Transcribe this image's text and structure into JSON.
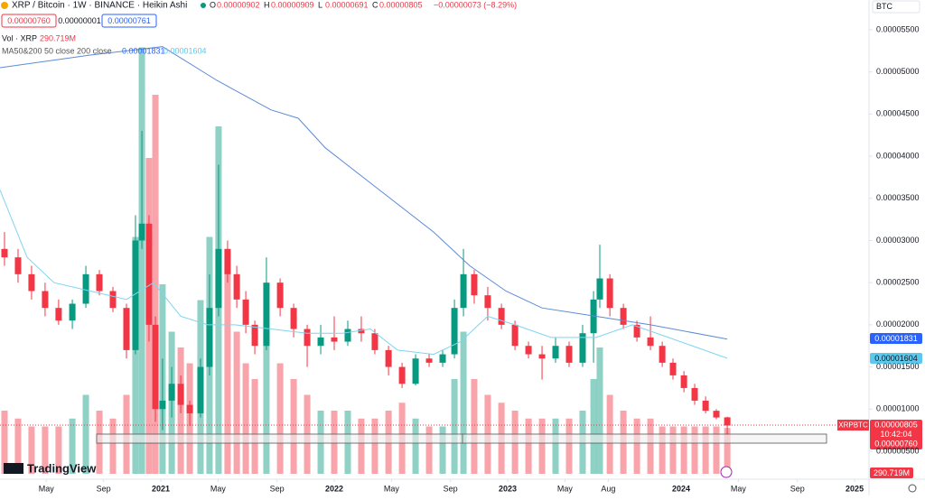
{
  "header": {
    "symbol": "XRP / Bitcoin · 1W · BINANCE · Heikin Ashi",
    "ohlc": [
      "O",
      "0.00000902",
      "H",
      "0.00000909",
      "L",
      "0.00000691",
      "C",
      "0.00000805"
    ],
    "change": "−0.00000073 (−8.29%)",
    "sell": "0.00000760",
    "spread": "0.00000001",
    "buy": "0.00000761",
    "currency": "BTC"
  },
  "legend": {
    "volume": "Vol · XRP",
    "volume_value": "290.719M",
    "ma": "MA50&200 50 close 200 close",
    "ma200_value": "0.00001831",
    "ma50_value": "0.00001604"
  },
  "price_labels": {
    "ticker": "XRPBTC",
    "last": "0.00000805",
    "countdown": "10:42:04",
    "bid": "0.00000760"
  },
  "logo": "TradingView",
  "chart_data": {
    "type": "candlestick",
    "log_scale": false,
    "grid": false,
    "xlim": [
      2020.073,
      2025.083
    ],
    "ylim": [
      2.32e-06,
      5.853e-05
    ],
    "y2lim": [
      0,
      3000
    ],
    "xticks": [
      {
        "value": 2020.34,
        "label": "May"
      },
      {
        "value": 2020.67,
        "label": "Sep"
      },
      {
        "value": 2021,
        "label": "2021"
      },
      {
        "value": 2021.33,
        "label": "May"
      },
      {
        "value": 2021.67,
        "label": "Sep"
      },
      {
        "value": 2022,
        "label": "2022"
      },
      {
        "value": 2022.33,
        "label": "May"
      },
      {
        "value": 2022.67,
        "label": "Sep"
      },
      {
        "value": 2023,
        "label": "2023"
      },
      {
        "value": 2023.33,
        "label": "May"
      },
      {
        "value": 2023.58,
        "label": "Aug"
      },
      {
        "value": 2024,
        "label": "2024"
      },
      {
        "value": 2024.33,
        "label": "May"
      },
      {
        "value": 2024.67,
        "label": "Sep"
      },
      {
        "value": 2025,
        "label": "2025"
      }
    ],
    "yticks": [
      {
        "value": 5.5e-05,
        "label": "0.00005500"
      },
      {
        "value": 5e-05,
        "label": "0.00005000"
      },
      {
        "value": 4.5e-05,
        "label": "0.00004500"
      },
      {
        "value": 4e-05,
        "label": "0.00004000"
      },
      {
        "value": 3.5e-05,
        "label": "0.00003500"
      },
      {
        "value": 3e-05,
        "label": "0.00003000"
      },
      {
        "value": 2.5e-05,
        "label": "0.00002500"
      },
      {
        "value": 2e-05,
        "label": "0.00002000"
      },
      {
        "value": 1.5e-05,
        "label": "0.00001500"
      },
      {
        "value": 1e-05,
        "label": "0.00001000"
      },
      {
        "value": 5e-06,
        "label": "0.00000500"
      }
    ],
    "up_color": "#089981",
    "down_color": "#f23645",
    "x": [
      2020.099,
      2020.177,
      2020.255,
      2020.333,
      2020.411,
      2020.49,
      2020.568,
      2020.646,
      2020.724,
      2020.802,
      2020.854,
      2020.891,
      2020.932,
      2020.969,
      2021.01,
      2021.063,
      2021.115,
      2021.167,
      2021.229,
      2021.281,
      2021.333,
      2021.385,
      2021.438,
      2021.49,
      2021.542,
      2021.609,
      2021.688,
      2021.766,
      2021.844,
      2021.922,
      2022.0,
      2022.078,
      2022.156,
      2022.234,
      2022.313,
      2022.391,
      2022.469,
      2022.547,
      2022.625,
      2022.693,
      2022.745,
      2022.807,
      2022.885,
      2022.964,
      2023.042,
      2023.12,
      2023.198,
      2023.276,
      2023.354,
      2023.432,
      2023.495,
      2023.531,
      2023.589,
      2023.667,
      2023.745,
      2023.823,
      2023.891,
      2023.953,
      2024.016,
      2024.078,
      2024.141,
      2024.203,
      2024.266
    ],
    "open": [
      2.9e-05,
      2.8e-05,
      2.6e-05,
      2.4e-05,
      2.2e-05,
      2.05e-05,
      2.25e-05,
      2.6e-05,
      2.4e-05,
      2.2e-05,
      1.7e-05,
      3e-05,
      3.2e-05,
      2e-05,
      1e-05,
      1.1e-05,
      1.3e-05,
      1.05e-05,
      9.5e-06,
      1.5e-05,
      2.2e-05,
      2.9e-05,
      2.6e-05,
      2.3e-05,
      2e-05,
      1.75e-05,
      2.5e-05,
      2.2e-05,
      1.95e-05,
      1.75e-05,
      1.85e-05,
      1.8e-05,
      1.95e-05,
      1.9e-05,
      1.7e-05,
      1.5e-05,
      1.3e-05,
      1.6e-05,
      1.55e-05,
      1.65e-05,
      2.2e-05,
      2.6e-05,
      2.35e-05,
      2.2e-05,
      2e-05,
      1.75e-05,
      1.65e-05,
      1.6e-05,
      1.75e-05,
      1.55e-05,
      1.9e-05,
      2.3e-05,
      2.55e-05,
      2.2e-05,
      2e-05,
      1.85e-05,
      1.75e-05,
      1.55e-05,
      1.4e-05,
      1.25e-05,
      1.1e-05,
      9.8e-06,
      9.02e-06
    ],
    "high": [
      3.1e-05,
      2.9e-05,
      2.7e-05,
      2.5e-05,
      2.3e-05,
      2.3e-05,
      2.7e-05,
      2.65e-05,
      2.45e-05,
      2.25e-05,
      3.3e-05,
      4.3e-05,
      3.3e-05,
      2.1e-05,
      1.6e-05,
      1.5e-05,
      1.4e-05,
      1.1e-05,
      1.6e-05,
      2.6e-05,
      3.9e-05,
      3e-05,
      2.7e-05,
      2.4e-05,
      2.05e-05,
      2.8e-05,
      2.55e-05,
      2.25e-05,
      2e-05,
      2e-05,
      2.1e-05,
      2.05e-05,
      2.1e-05,
      1.95e-05,
      1.75e-05,
      1.55e-05,
      1.65e-05,
      1.65e-05,
      1.7e-05,
      2.3e-05,
      2.9e-05,
      2.65e-05,
      2.45e-05,
      2.25e-05,
      2.05e-05,
      1.8e-05,
      1.75e-05,
      1.85e-05,
      1.8e-05,
      2e-05,
      2.4e-05,
      2.95e-05,
      2.6e-05,
      2.25e-05,
      2.05e-05,
      2.1e-05,
      1.8e-05,
      1.6e-05,
      1.45e-05,
      1.3e-05,
      1.15e-05,
      1e-05,
      9.09e-06
    ],
    "low": [
      2.7e-05,
      2.5e-05,
      2.3e-05,
      2.1e-05,
      2e-05,
      1.95e-05,
      2.2e-05,
      2.35e-05,
      2.15e-05,
      1.6e-05,
      1.65e-05,
      2.9e-05,
      1.8e-05,
      8.5e-06,
      7.5e-06,
      9e-06,
      9.5e-06,
      8e-06,
      9e-06,
      1.4e-05,
      2.1e-05,
      2.5e-05,
      2.2e-05,
      1.9e-05,
      1.65e-05,
      1.7e-05,
      2.1e-05,
      1.85e-05,
      1.5e-05,
      1.65e-05,
      1.7e-05,
      1.75e-05,
      1.8e-05,
      1.65e-05,
      1.4e-05,
      1.25e-05,
      1.28e-05,
      1.5e-05,
      1.5e-05,
      1.6e-05,
      2.1e-05,
      2.25e-05,
      2.05e-05,
      1.95e-05,
      1.7e-05,
      1.6e-05,
      1.35e-05,
      1.55e-05,
      1.5e-05,
      1.5e-05,
      1.55e-05,
      2.2e-05,
      2.1e-05,
      1.95e-05,
      1.8e-05,
      1.7e-05,
      1.5e-05,
      1.35e-05,
      1.2e-05,
      1.05e-05,
      9.5e-06,
      8.8e-06,
      6.91e-06
    ],
    "close": [
      2.8e-05,
      2.6e-05,
      2.4e-05,
      2.2e-05,
      2.05e-05,
      2.25e-05,
      2.6e-05,
      2.4e-05,
      2.2e-05,
      1.7e-05,
      3e-05,
      3.2e-05,
      2e-05,
      1e-05,
      1.1e-05,
      1.3e-05,
      1.05e-05,
      9.5e-06,
      1.5e-05,
      2.2e-05,
      2.9e-05,
      2.6e-05,
      2.3e-05,
      2e-05,
      1.75e-05,
      2.5e-05,
      2.2e-05,
      1.95e-05,
      1.75e-05,
      1.85e-05,
      1.8e-05,
      1.95e-05,
      1.9e-05,
      1.7e-05,
      1.5e-05,
      1.3e-05,
      1.6e-05,
      1.55e-05,
      1.65e-05,
      2.2e-05,
      2.6e-05,
      2.35e-05,
      2.2e-05,
      2e-05,
      1.75e-05,
      1.65e-05,
      1.6e-05,
      1.75e-05,
      1.55e-05,
      1.9e-05,
      2.3e-05,
      2.55e-05,
      2.2e-05,
      2e-05,
      1.85e-05,
      1.75e-05,
      1.55e-05,
      1.4e-05,
      1.25e-05,
      1.1e-05,
      9.8e-06,
      9e-06,
      8.05e-06
    ],
    "volume": [
      400,
      350,
      300,
      300,
      300,
      350,
      500,
      400,
      350,
      500,
      1500,
      2700,
      2000,
      2400,
      1200,
      900,
      800,
      700,
      1100,
      1500,
      2200,
      1300,
      900,
      700,
      600,
      900,
      700,
      600,
      500,
      400,
      400,
      400,
      350,
      350,
      400,
      450,
      350,
      300,
      300,
      600,
      900,
      600,
      500,
      450,
      400,
      350,
      350,
      350,
      350,
      400,
      600,
      800,
      500,
      400,
      350,
      350,
      300,
      300,
      300,
      300,
      300,
      300,
      290.719
    ],
    "volume_value_labels": {
      "62": "290.719M"
    },
    "lines": [
      {
        "name": "MA200",
        "color": "#5b8bd9",
        "x": [
          2020.073,
          2020.594,
          2021.01,
          2021.323,
          2021.635,
          2021.792,
          2021.948,
          2022.26,
          2022.573,
          2022.781,
          2022.99,
          2023.198,
          2023.51,
          2023.823,
          2024.266
        ],
        "values": [
          5.05e-05,
          5.2e-05,
          5.3e-05,
          4.9e-05,
          4.55e-05,
          4.45e-05,
          4.1e-05,
          3.6e-05,
          3.1e-05,
          2.7e-05,
          2.4e-05,
          2.2e-05,
          2.1e-05,
          2e-05,
          1.831e-05
        ]
      },
      {
        "name": "MA50",
        "color": "#7fd4f0",
        "x": [
          2020.073,
          2020.229,
          2020.385,
          2020.594,
          2020.802,
          2020.958,
          2021.115,
          2021.271,
          2021.427,
          2021.635,
          2021.844,
          2022.052,
          2022.208,
          2022.365,
          2022.573,
          2022.729,
          2022.885,
          2023.042,
          2023.25,
          2023.51,
          2023.719,
          2023.927,
          2024.266
        ],
        "values": [
          3.6e-05,
          2.8e-05,
          2.5e-05,
          2.4e-05,
          2.3e-05,
          2.5e-05,
          2.1e-05,
          2e-05,
          2e-05,
          1.95e-05,
          1.9e-05,
          1.9e-05,
          1.95e-05,
          1.7e-05,
          1.65e-05,
          1.8e-05,
          2.1e-05,
          2e-05,
          1.85e-05,
          1.85e-05,
          2e-05,
          1.85e-05,
          1.604e-05
        ]
      }
    ]
  }
}
